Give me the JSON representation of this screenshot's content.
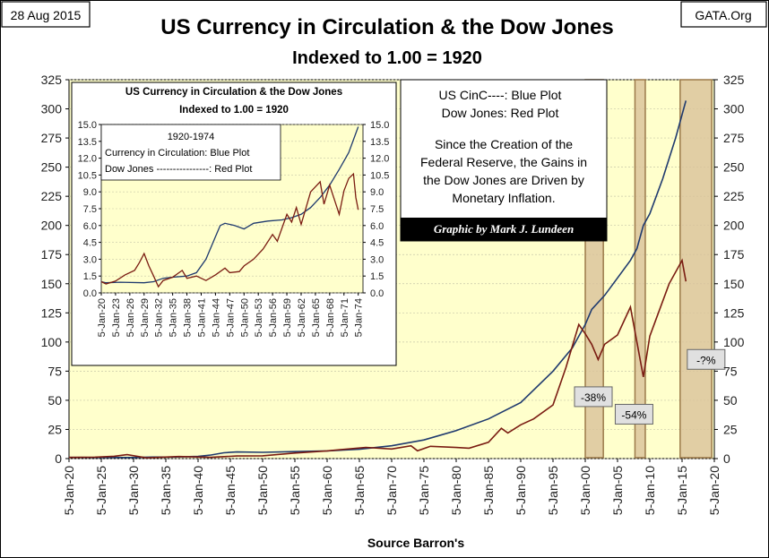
{
  "header": {
    "date": "28 Aug 2015",
    "source_badge": "GATA.Org",
    "title_line1": "US Currency in Circulation & the Dow Jones",
    "title_line2": "Indexed to 1.00 = 1920"
  },
  "legend_box": {
    "line1": "US CinC----:  Blue Plot",
    "line2": "Dow Jones: Red Plot",
    "note_line1": "Since the Creation of the",
    "note_line2": "Federal Reserve, the Gains in",
    "note_line3": "the Dow Jones are Driven by",
    "note_line4": "Monetary Inflation.",
    "credit": "Graphic by Mark J. Lundeen"
  },
  "footer": {
    "source": "Source Barron's"
  },
  "colors": {
    "blue": "#1f3a6e",
    "red": "#7a1c12",
    "plot_bg": "#ffffcc",
    "band_fill": "#d9c29a",
    "band_stroke": "#9c7a4a"
  },
  "chart_data": [
    {
      "id": "main",
      "type": "line",
      "title": "US Currency in Circulation & the Dow Jones — Indexed to 1.00 = 1920",
      "xlabel": "Source Barron's",
      "xlim": [
        1920,
        2020
      ],
      "ylim": [
        0,
        325
      ],
      "yticks": [
        0,
        25,
        50,
        75,
        100,
        125,
        150,
        175,
        200,
        225,
        250,
        275,
        300,
        325
      ],
      "xtick_labels": [
        "5-Jan-20",
        "5-Jan-25",
        "5-Jan-30",
        "5-Jan-35",
        "5-Jan-40",
        "5-Jan-45",
        "5-Jan-50",
        "5-Jan-55",
        "5-Jan-60",
        "5-Jan-65",
        "5-Jan-70",
        "5-Jan-75",
        "5-Jan-80",
        "5-Jan-85",
        "5-Jan-90",
        "5-Jan-95",
        "5-Jan-00",
        "5-Jan-05",
        "5-Jan-10",
        "5-Jan-15",
        "5-Jan-20"
      ],
      "series": [
        {
          "name": "US Currency in Circulation",
          "color": "blue",
          "points": [
            [
              1920,
              1.0
            ],
            [
              1925,
              0.9
            ],
            [
              1930,
              0.95
            ],
            [
              1933,
              1.3
            ],
            [
              1936,
              1.3
            ],
            [
              1940,
              1.85
            ],
            [
              1942,
              3.1
            ],
            [
              1944,
              5.0
            ],
            [
              1946,
              5.7
            ],
            [
              1950,
              5.4
            ],
            [
              1955,
              6.0
            ],
            [
              1960,
              6.6
            ],
            [
              1965,
              8.0
            ],
            [
              1970,
              11.0
            ],
            [
              1975,
              16.0
            ],
            [
              1980,
              24.0
            ],
            [
              1985,
              34.0
            ],
            [
              1990,
              48.0
            ],
            [
              1995,
              75.0
            ],
            [
              1998,
              95.0
            ],
            [
              2000,
              115.0
            ],
            [
              2001,
              128.0
            ],
            [
              2003,
              140.0
            ],
            [
              2005,
              155.0
            ],
            [
              2007,
              170.0
            ],
            [
              2008,
              180.0
            ],
            [
              2009,
              200.0
            ],
            [
              2010,
              210.0
            ],
            [
              2012,
              240.0
            ],
            [
              2014,
              275.0
            ],
            [
              2015,
              295.0
            ],
            [
              2015.6,
              307.0
            ]
          ]
        },
        {
          "name": "Dow Jones",
          "color": "red",
          "points": [
            [
              1920,
              1.0
            ],
            [
              1924,
              1.2
            ],
            [
              1927,
              2.0
            ],
            [
              1929,
              3.4
            ],
            [
              1932,
              0.6
            ],
            [
              1937,
              1.8
            ],
            [
              1942,
              1.1
            ],
            [
              1946,
              2.2
            ],
            [
              1950,
              2.4
            ],
            [
              1955,
              4.8
            ],
            [
              1960,
              6.6
            ],
            [
              1966,
              9.6
            ],
            [
              1970,
              8.2
            ],
            [
              1973,
              11.0
            ],
            [
              1974,
              6.7
            ],
            [
              1976,
              10.5
            ],
            [
              1980,
              9.5
            ],
            [
              1982,
              8.9
            ],
            [
              1985,
              14.0
            ],
            [
              1987,
              26.0
            ],
            [
              1988,
              22.0
            ],
            [
              1990,
              29.0
            ],
            [
              1992,
              34.0
            ],
            [
              1995,
              46.0
            ],
            [
              1997,
              78.0
            ],
            [
              1999,
              115.0
            ],
            [
              2000,
              107.0
            ],
            [
              2001,
              98.0
            ],
            [
              2002,
              85.0
            ],
            [
              2003,
              98.0
            ],
            [
              2005,
              106.0
            ],
            [
              2007,
              130.0
            ],
            [
              2008,
              100.0
            ],
            [
              2009,
              70.0
            ],
            [
              2010,
              105.0
            ],
            [
              2011,
              120.0
            ],
            [
              2013,
              150.0
            ],
            [
              2015,
              170.0
            ],
            [
              2015.6,
              152.0
            ]
          ]
        }
      ],
      "bear_markets": [
        {
          "start": 2000,
          "end": 2002.8,
          "label": "-38%",
          "label_y": 50
        },
        {
          "start": 2007.7,
          "end": 2009.3,
          "label": "-54%",
          "label_y": 35
        },
        {
          "start": 2014.7,
          "end": 2019.6,
          "label": "-?%",
          "label_y": 82
        }
      ]
    },
    {
      "id": "inset",
      "type": "line",
      "title": "US Currency in Circulation & the Dow Jones",
      "subtitle": "Indexed to 1.00 = 1920",
      "legend_period": "1920-1974",
      "legend_line1": "Currency in Circulation: Blue Plot",
      "legend_line2": "Dow Jones  ----------------: Red Plot",
      "xlim": [
        1920,
        1975
      ],
      "ylim": [
        0,
        15
      ],
      "ytick_labels": [
        "0.0",
        "1.5",
        "3.0",
        "4.5",
        "6.0",
        "7.5",
        "9.0",
        "10.5",
        "12.0",
        "13.5",
        "15.0"
      ],
      "xtick_labels": [
        "5-Jan-20",
        "5-Jan-23",
        "5-Jan-26",
        "5-Jan-29",
        "5-Jan-32",
        "5-Jan-35",
        "5-Jan-38",
        "5-Jan-41",
        "5-Jan-44",
        "5-Jan-47",
        "5-Jan-50",
        "5-Jan-53",
        "5-Jan-56",
        "5-Jan-59",
        "5-Jan-62",
        "5-Jan-65",
        "5-Jan-68",
        "5-Jan-71",
        "5-Jan-74"
      ],
      "series": [
        {
          "name": "US Currency in Circulation",
          "color": "blue",
          "points": [
            [
              1920,
              1.0
            ],
            [
              1921,
              0.9
            ],
            [
              1924,
              0.95
            ],
            [
              1929,
              0.9
            ],
            [
              1931,
              1.0
            ],
            [
              1933,
              1.3
            ],
            [
              1935,
              1.4
            ],
            [
              1938,
              1.5
            ],
            [
              1940,
              1.8
            ],
            [
              1942,
              3.0
            ],
            [
              1944,
              5.0
            ],
            [
              1945,
              6.0
            ],
            [
              1946,
              6.2
            ],
            [
              1948,
              6.0
            ],
            [
              1950,
              5.7
            ],
            [
              1952,
              6.2
            ],
            [
              1955,
              6.4
            ],
            [
              1958,
              6.5
            ],
            [
              1960,
              6.7
            ],
            [
              1962,
              7.0
            ],
            [
              1964,
              7.6
            ],
            [
              1966,
              8.5
            ],
            [
              1968,
              9.6
            ],
            [
              1970,
              11.0
            ],
            [
              1972,
              12.5
            ],
            [
              1974,
              14.8
            ]
          ]
        },
        {
          "name": "Dow Jones",
          "color": "red",
          "points": [
            [
              1920,
              1.0
            ],
            [
              1921,
              0.8
            ],
            [
              1923,
              1.05
            ],
            [
              1925,
              1.6
            ],
            [
              1927,
              2.0
            ],
            [
              1928,
              2.7
            ],
            [
              1929,
              3.5
            ],
            [
              1930,
              2.4
            ],
            [
              1931,
              1.5
            ],
            [
              1932,
              0.55
            ],
            [
              1933,
              1.1
            ],
            [
              1935,
              1.4
            ],
            [
              1937,
              2.0
            ],
            [
              1938,
              1.3
            ],
            [
              1940,
              1.5
            ],
            [
              1942,
              1.1
            ],
            [
              1944,
              1.6
            ],
            [
              1946,
              2.2
            ],
            [
              1947,
              1.8
            ],
            [
              1949,
              1.9
            ],
            [
              1950,
              2.4
            ],
            [
              1952,
              3.0
            ],
            [
              1954,
              3.9
            ],
            [
              1956,
              5.2
            ],
            [
              1957,
              4.6
            ],
            [
              1959,
              7.0
            ],
            [
              1960,
              6.3
            ],
            [
              1961,
              7.6
            ],
            [
              1962,
              6.1
            ],
            [
              1964,
              9.0
            ],
            [
              1966,
              9.9
            ],
            [
              1966.8,
              7.9
            ],
            [
              1968,
              9.6
            ],
            [
              1970,
              7.0
            ],
            [
              1971,
              9.1
            ],
            [
              1972,
              10.2
            ],
            [
              1973,
              10.6
            ],
            [
              1973.5,
              8.5
            ],
            [
              1974,
              7.4
            ]
          ]
        }
      ]
    }
  ]
}
